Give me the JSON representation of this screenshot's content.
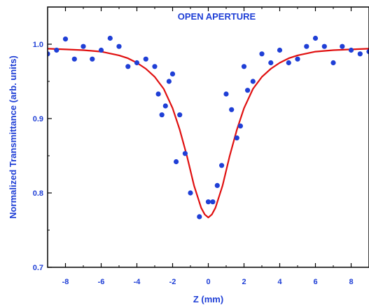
{
  "chart_data": {
    "type": "scatter",
    "title": "OPEN APERTURE",
    "xlabel": "Z (mm)",
    "ylabel": "Normalized Transmittance (arb. units)",
    "xlim": [
      -9,
      9
    ],
    "ylim": [
      0.7,
      1.05
    ],
    "xticks": [
      -8,
      -6,
      -4,
      -2,
      0,
      2,
      4,
      6,
      8
    ],
    "xtick_labels": [
      "-8",
      "-6",
      "-4",
      "-2",
      "0",
      "2",
      "4",
      "6",
      "8"
    ],
    "yticks": [
      0.7,
      0.8,
      0.9,
      1.0
    ],
    "ytick_labels": [
      "0.7",
      "0.8",
      "0.9",
      "1.0"
    ],
    "grid": false,
    "series": [
      {
        "kind": "points",
        "color": "#1f3fd6",
        "x": [
          -9.0,
          -8.5,
          -8.0,
          -7.5,
          -7.0,
          -6.5,
          -6.0,
          -5.5,
          -5.0,
          -4.5,
          -4.0,
          -3.5,
          -3.0,
          -2.8,
          -2.6,
          -2.4,
          -2.2,
          -2.0,
          -1.8,
          -1.6,
          -1.3,
          -1.0,
          -0.5,
          0.0,
          0.25,
          0.5,
          0.75,
          1.0,
          1.3,
          1.6,
          1.8,
          2.0,
          2.2,
          2.5,
          3.0,
          3.5,
          4.0,
          4.5,
          5.0,
          5.5,
          6.0,
          6.5,
          7.0,
          7.5,
          8.0,
          8.5,
          9.0
        ],
        "y": [
          0.987,
          0.992,
          1.007,
          0.98,
          0.997,
          0.98,
          0.992,
          1.008,
          0.997,
          0.97,
          0.975,
          0.98,
          0.97,
          0.933,
          0.905,
          0.917,
          0.95,
          0.96,
          0.842,
          0.905,
          0.853,
          0.8,
          0.768,
          0.788,
          0.788,
          0.81,
          0.837,
          0.933,
          0.912,
          0.874,
          0.89,
          0.97,
          0.938,
          0.95,
          0.987,
          0.975,
          0.992,
          0.975,
          0.98,
          0.997,
          1.008,
          0.997,
          0.975,
          0.997,
          0.992,
          0.987,
          0.99
        ]
      },
      {
        "kind": "fit",
        "color": "#e01010",
        "x": [
          -9,
          -8,
          -7,
          -6,
          -5,
          -4.5,
          -4,
          -3.5,
          -3,
          -2.5,
          -2,
          -1.6,
          -1.2,
          -0.8,
          -0.4,
          -0.2,
          0,
          0.2,
          0.4,
          0.8,
          1.2,
          1.6,
          2,
          2.5,
          3,
          3.5,
          4,
          4.5,
          5,
          6,
          7,
          8,
          9
        ],
        "y": [
          0.994,
          0.993,
          0.992,
          0.99,
          0.985,
          0.981,
          0.975,
          0.967,
          0.956,
          0.94,
          0.914,
          0.885,
          0.85,
          0.81,
          0.78,
          0.771,
          0.767,
          0.771,
          0.78,
          0.81,
          0.85,
          0.885,
          0.914,
          0.94,
          0.956,
          0.967,
          0.975,
          0.981,
          0.985,
          0.99,
          0.992,
          0.993,
          0.994
        ]
      }
    ]
  }
}
